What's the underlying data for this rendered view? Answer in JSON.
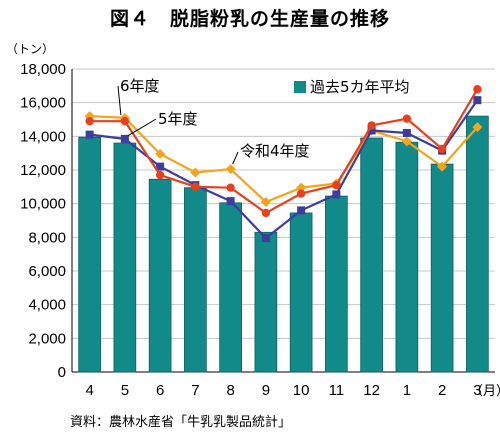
{
  "header": {
    "title": "図４　脱脂粉乳の生産量の推移",
    "unit": "（トン）",
    "x_unit": "（月）",
    "source": "資料：農林水産省「牛乳乳製品統計」"
  },
  "colors": {
    "bars": "#138A8A",
    "bars_edge": "#0b5e5e",
    "r6": "#E8401C",
    "r5": "#3C3D9C",
    "r4": "#F5A31A"
  },
  "chart_data": {
    "type": "bar",
    "categories": [
      "4",
      "5",
      "6",
      "7",
      "8",
      "9",
      "10",
      "11",
      "12",
      "1",
      "2",
      "3"
    ],
    "ylim": [
      0,
      18000
    ],
    "yticks": [
      0,
      2000,
      4000,
      6000,
      8000,
      10000,
      12000,
      14000,
      16000,
      18000
    ],
    "ytick_labels": [
      "0",
      "2,000",
      "4,000",
      "6,000",
      "8,000",
      "10,000",
      "12,000",
      "14,000",
      "16,000",
      "18,000"
    ],
    "grid": true,
    "series": [
      {
        "name": "過去5カ年平均",
        "kind": "bar",
        "values": [
          13950,
          13600,
          11450,
          10950,
          10050,
          8300,
          9450,
          10450,
          13900,
          13650,
          12350,
          15200
        ]
      },
      {
        "name": "6年度",
        "kind": "line",
        "values": [
          14900,
          14900,
          11700,
          11000,
          10950,
          9450,
          10600,
          11100,
          14650,
          15050,
          13250,
          16800
        ]
      },
      {
        "name": "5年度",
        "kind": "line",
        "values": [
          14100,
          13850,
          12200,
          11100,
          10150,
          7950,
          9600,
          10550,
          14350,
          14200,
          13150,
          16150
        ]
      },
      {
        "name": "令和4年度",
        "kind": "line",
        "values": [
          15200,
          15100,
          12950,
          11850,
          12050,
          10100,
          10950,
          11200,
          14350,
          13700,
          12200,
          14550
        ]
      }
    ]
  }
}
